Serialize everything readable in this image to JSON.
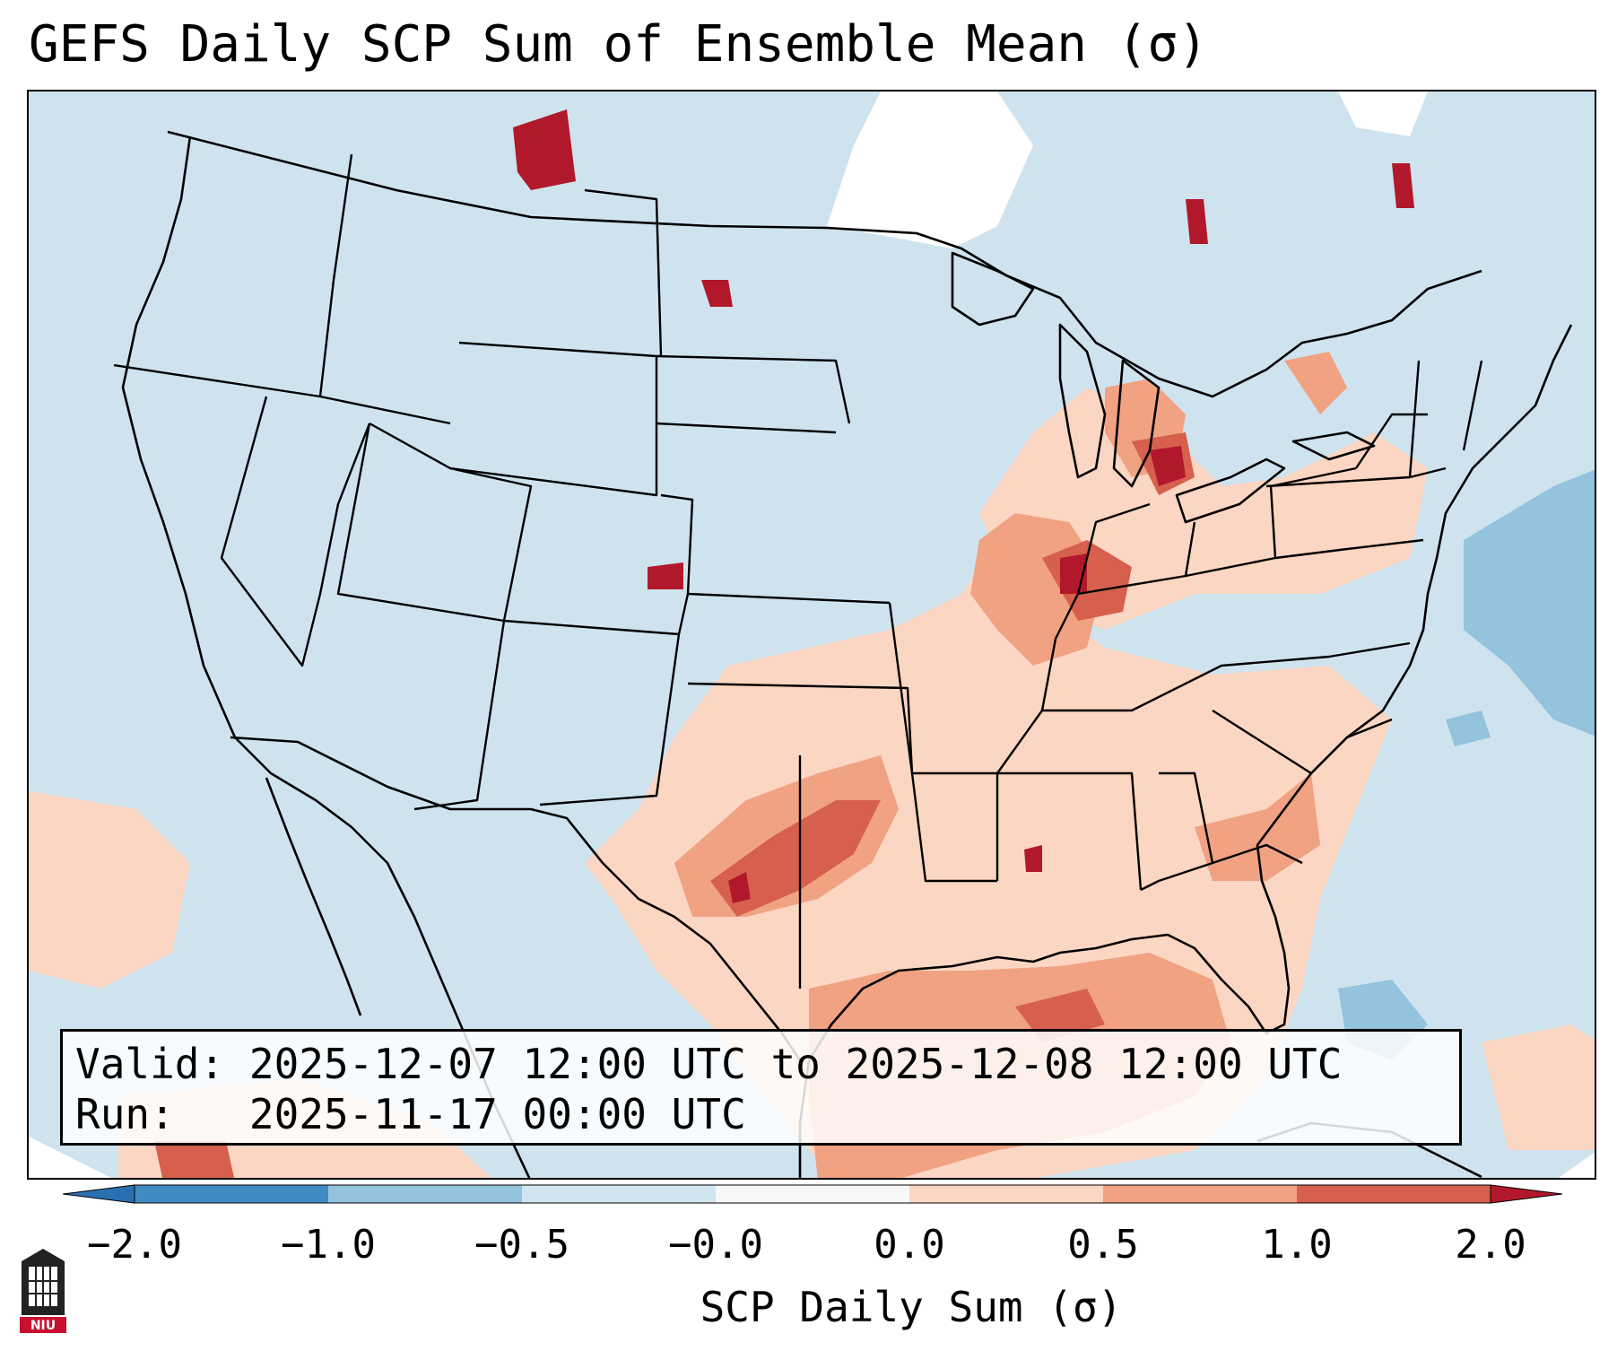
{
  "title": "GEFS Daily SCP Sum of Ensemble Mean (σ)",
  "info": {
    "valid_label": "Valid:",
    "valid_value": "2025-12-07 12:00 UTC to 2025-12-08 12:00 UTC",
    "run_label": "Run:",
    "run_value": "2025-11-17 00:00 UTC"
  },
  "colorbar": {
    "label": "SCP Daily Sum (σ)",
    "ticks": [
      "−2.0",
      "−1.0",
      "−0.5",
      "−0.0",
      "0.0",
      "0.5",
      "1.0",
      "2.0"
    ],
    "bins": [
      {
        "range": "-2.0 to -1.0",
        "color": "#3f8bc2"
      },
      {
        "range": "-1.0 to -0.5",
        "color": "#93c3dd"
      },
      {
        "range": "-0.5 to -0.0",
        "color": "#d1e5f0"
      },
      {
        "range": "-0.0 to 0.0",
        "color": "#f7f7f7"
      },
      {
        "range": "0.0 to 0.5",
        "color": "#fbd6c2"
      },
      {
        "range": "0.5 to 1.0",
        "color": "#f0a283"
      },
      {
        "range": "1.0 to 2.0",
        "color": "#d6604d"
      }
    ],
    "under_color": "#2a70b0",
    "over_color": "#b2182b"
  },
  "colors": {
    "ocean_land_base": "#cfe3ef",
    "neutral": "#ffffff",
    "light_pos": "#fbd6c2",
    "mid_pos": "#f0a283",
    "high_pos": "#d6604d",
    "extreme_pos": "#b2182b",
    "light_neg": "#93c3dd"
  },
  "logo": {
    "text": "NIU"
  }
}
